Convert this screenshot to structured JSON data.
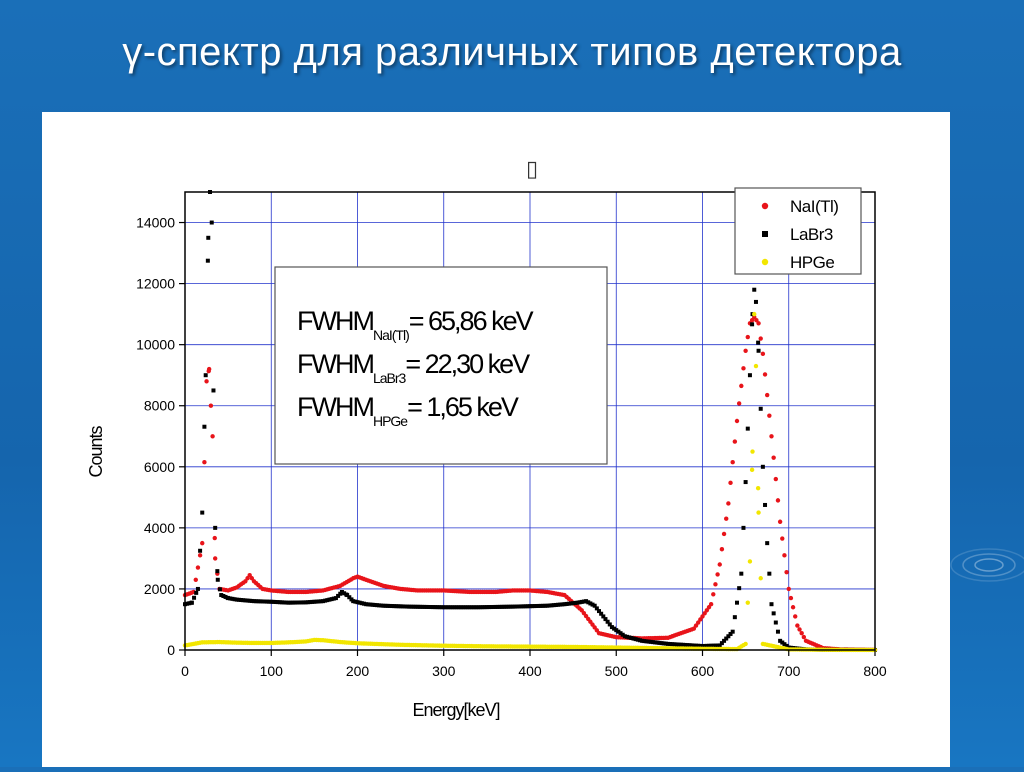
{
  "slide": {
    "title": "γ-спектр для различных типов детектора"
  },
  "chart_data": {
    "type": "scatter",
    "stray_glyph": "▯",
    "xlabel": "Energy[keV]",
    "ylabel": "Counts",
    "xlim": [
      0,
      800
    ],
    "ylim": [
      0,
      15000
    ],
    "xticks": [
      "0",
      "100",
      "200",
      "300",
      "400",
      "500",
      "600",
      "700",
      "800"
    ],
    "yticks": [
      "0",
      "2000",
      "4000",
      "6000",
      "8000",
      "10000",
      "12000",
      "14000"
    ],
    "grid": true,
    "legend_position": "top-right",
    "annotation": [
      {
        "main": "FWHM",
        "sub": "NaI(Tl)",
        "value": "= 65,86 keV"
      },
      {
        "main": "FWHM",
        "sub": "LaBr3",
        "value": "= 22,30 keV"
      },
      {
        "main": "FWHM",
        "sub": "HPGe",
        "value": "= 1,65 keV"
      }
    ],
    "series": [
      {
        "name": "NaI(Tl)",
        "color": "#e8141a",
        "marker": "circle",
        "x": [
          0,
          10,
          20,
          25,
          28,
          30,
          32,
          35,
          40,
          50,
          60,
          70,
          75,
          80,
          90,
          100,
          120,
          140,
          160,
          180,
          195,
          200,
          210,
          230,
          250,
          270,
          300,
          330,
          360,
          380,
          400,
          420,
          440,
          460,
          480,
          500,
          530,
          560,
          590,
          610,
          620,
          630,
          640,
          650,
          655,
          660,
          665,
          670,
          680,
          690,
          700,
          710,
          720,
          740,
          760,
          780,
          800
        ],
        "y": [
          1800,
          1900,
          3500,
          8800,
          9200,
          8000,
          7000,
          3000,
          2000,
          1950,
          2050,
          2250,
          2450,
          2250,
          2000,
          1950,
          1900,
          1900,
          1950,
          2100,
          2350,
          2400,
          2300,
          2100,
          2000,
          1950,
          1950,
          1900,
          1900,
          1950,
          1950,
          1900,
          1800,
          1300,
          550,
          420,
          380,
          400,
          700,
          1500,
          2800,
          4800,
          7500,
          9800,
          10700,
          10900,
          10700,
          9700,
          7000,
          4200,
          2000,
          800,
          300,
          60,
          20,
          10,
          5
        ]
      },
      {
        "name": "LaBr3",
        "color": "#000000",
        "marker": "square",
        "x": [
          0,
          8,
          15,
          20,
          24,
          27,
          29,
          31,
          33,
          35,
          38,
          42,
          50,
          60,
          80,
          100,
          120,
          140,
          160,
          175,
          182,
          188,
          195,
          210,
          230,
          260,
          300,
          340,
          380,
          420,
          440,
          455,
          465,
          475,
          485,
          495,
          510,
          530,
          560,
          600,
          620,
          635,
          645,
          650,
          655,
          658,
          660,
          662,
          665,
          670,
          675,
          680,
          690,
          700,
          720,
          750,
          800
        ],
        "y": [
          1500,
          1550,
          2000,
          4500,
          9000,
          13500,
          15000,
          14000,
          8500,
          4000,
          2300,
          1800,
          1700,
          1650,
          1600,
          1580,
          1550,
          1560,
          1600,
          1700,
          1900,
          1800,
          1600,
          1500,
          1450,
          1420,
          1400,
          1400,
          1420,
          1450,
          1500,
          1550,
          1600,
          1450,
          1100,
          750,
          450,
          300,
          200,
          130,
          150,
          600,
          2500,
          5500,
          9000,
          11000,
          11800,
          11400,
          9800,
          6000,
          3500,
          1500,
          300,
          80,
          20,
          5,
          0
        ]
      },
      {
        "name": "HPGe",
        "color": "#f2e600",
        "marker": "circle",
        "x": [
          0,
          20,
          40,
          60,
          80,
          100,
          120,
          140,
          150,
          160,
          170,
          180,
          200,
          250,
          300,
          350,
          400,
          450,
          500,
          550,
          600,
          640,
          650,
          655,
          658,
          660,
          662,
          665,
          670,
          700,
          750,
          800
        ],
        "y": [
          150,
          250,
          260,
          240,
          230,
          230,
          250,
          280,
          330,
          320,
          290,
          260,
          220,
          170,
          140,
          120,
          110,
          100,
          80,
          60,
          40,
          30,
          200,
          2900,
          6500,
          11000,
          9300,
          4500,
          200,
          20,
          5,
          0
        ]
      }
    ]
  }
}
